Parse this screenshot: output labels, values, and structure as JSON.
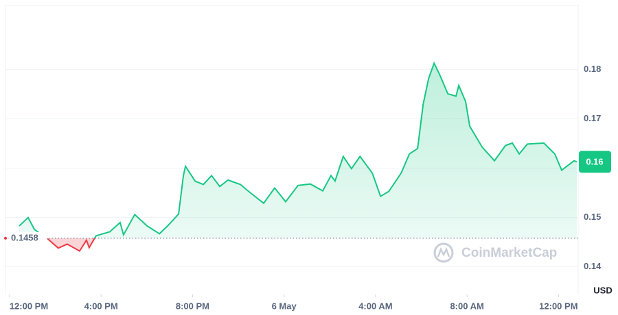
{
  "chart_data": {
    "type": "line",
    "x": [
      0.42,
      0.81,
      1.08,
      1.68,
      2.13,
      2.52,
      3.06,
      3.36,
      3.48,
      3.78,
      4.38,
      4.83,
      4.98,
      5.47,
      6.01,
      6.55,
      6.91,
      7.39,
      7.6,
      7.69,
      8.11,
      8.47,
      8.83,
      9.19,
      9.55,
      10.09,
      10.45,
      11.11,
      11.59,
      12.07,
      12.61,
      13.15,
      13.69,
      14.05,
      14.23,
      14.59,
      14.95,
      15.32,
      15.86,
      16.22,
      16.58,
      17.12,
      17.48,
      17.84,
      18.08,
      18.32,
      18.56,
      18.8,
      19.16,
      19.52,
      19.64,
      19.94,
      20.12,
      20.66,
      21.2,
      21.68,
      21.98,
      22.28,
      22.64,
      23.36,
      23.84,
      24.14,
      24.68,
      24.8
    ],
    "values": [
      0.1483,
      0.15,
      0.1476,
      0.1456,
      0.1438,
      0.1446,
      0.1432,
      0.1454,
      0.1439,
      0.1463,
      0.1471,
      0.149,
      0.1465,
      0.1506,
      0.1483,
      0.1467,
      0.1483,
      0.1507,
      0.1585,
      0.1604,
      0.1574,
      0.1567,
      0.1585,
      0.1563,
      0.1576,
      0.1567,
      0.1553,
      0.1529,
      0.156,
      0.1532,
      0.1565,
      0.1568,
      0.1554,
      0.1585,
      0.1574,
      0.1624,
      0.1599,
      0.1624,
      0.159,
      0.1543,
      0.1553,
      0.159,
      0.1629,
      0.164,
      0.1729,
      0.1782,
      0.1813,
      0.179,
      0.1751,
      0.1746,
      0.1768,
      0.1735,
      0.1685,
      0.1643,
      0.1615,
      0.1646,
      0.1651,
      0.1629,
      0.1649,
      0.1651,
      0.1629,
      0.1596,
      0.1615,
      0.1613
    ],
    "color_up": "#16c784",
    "color_down": "#ea3943",
    "baseline": 0.1458,
    "current_price": {
      "value": 0.1613,
      "label": "0.16"
    },
    "currency": "USD",
    "watermark": "CoinMarketCap",
    "xlim": [
      -0.18,
      24.86
    ],
    "xticks": [
      {
        "value": 0,
        "label": "12:00 PM"
      },
      {
        "value": 4,
        "label": "4:00 PM"
      },
      {
        "value": 8,
        "label": "8:00 PM"
      },
      {
        "value": 12,
        "label": "6 May"
      },
      {
        "value": 16,
        "label": "4:00 AM"
      },
      {
        "value": 20,
        "label": "8:00 AM"
      },
      {
        "value": 24,
        "label": "12:00 PM"
      }
    ],
    "ylim": [
      0.1344,
      0.193
    ],
    "yticks": [
      0.14,
      0.15,
      0.16,
      0.17,
      0.18
    ],
    "grid": true
  }
}
